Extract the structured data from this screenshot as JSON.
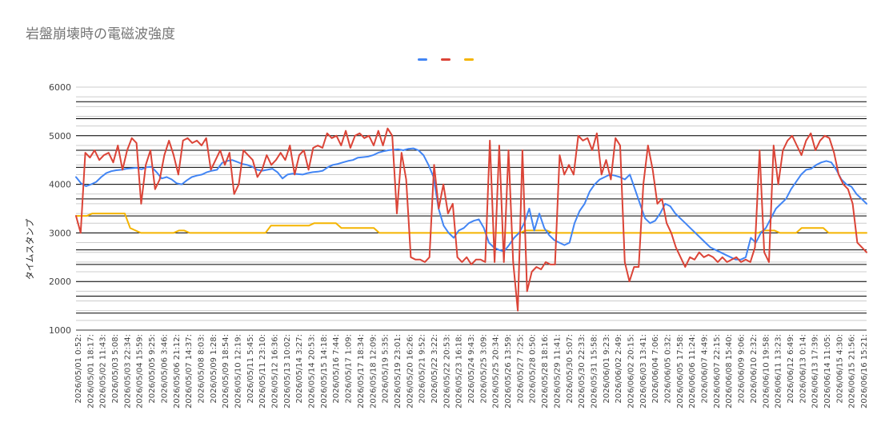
{
  "chart_data": {
    "type": "line",
    "title": "岩盤崩壊時の電磁波強度",
    "xlabel": "",
    "ylabel": "タイムスタンプ",
    "ylim": [
      1000,
      6000
    ],
    "y_ticks": [
      "6000",
      "5000",
      "4000",
      "3000",
      "2000",
      "1000"
    ],
    "grid": true,
    "legend_position": "top",
    "x_tick_labels": [
      "2026/05/01 0:52:",
      "2026/05/01 18:17:",
      "2026/05/02 11:43:",
      "2026/05/03 5:08:",
      "2026/05/03 22:34:",
      "2026/05/04 15:59:",
      "2026/05/05 9:25:",
      "2026/05/06 3:46:",
      "2026/05/06 21:12:",
      "2026/05/07 14:37:",
      "2026/05/08 8:03:",
      "2026/05/09 1:28:",
      "2026/05/09 18:54:",
      "2026/05/10 12:19:",
      "2026/05/11 5:45:",
      "2026/05/11 23:10:",
      "2026/05/12 16:36:",
      "2026/05/13 10:02:",
      "2026/05/14 3:27:",
      "2026/05/14 20:53:",
      "2026/05/15 14:18:",
      "2026/05/16 7:44:",
      "2026/05/17 1:09:",
      "2026/05/17 18:34:",
      "2026/05/18 12:09:",
      "2026/05/19 5:35:",
      "2026/05/19 23:01:",
      "2026/05/20 16:26:",
      "2026/05/21 9:52:",
      "2026/05/22 3:22:",
      "2026/05/22 20:53:",
      "2026/05/23 16:18:",
      "2026/05/24 9:43:",
      "2026/05/25 3:09:",
      "2026/05/25 20:34:",
      "2026/05/26 13:59:",
      "2026/05/27 7:25:",
      "2026/05/28 0:50:",
      "2026/05/28 18:16:",
      "2026/05/29 11:41:",
      "2026/05/30 5:07:",
      "2026/05/30 22:33:",
      "2026/05/31 15:58:",
      "2026/06/01 9:23:",
      "2026/06/02 2:49:",
      "2026/06/02 20:15:",
      "2026/06/03 13:41:",
      "2026/06/04 7:06:",
      "2026/06/05 0:32:",
      "2026/06/05 17:58:",
      "2026/06/06 11:24:",
      "2026/06/07 4:49:",
      "2026/06/07 22:15:",
      "2026/06/08 15:40:",
      "2026/06/09 9:06:",
      "2026/06/10 2:32:",
      "2026/06/10 19:58:",
      "2026/06/11 13:23:",
      "2026/06/12 6:49:",
      "2026/06/13 0:14:",
      "2026/06/13 17:39:",
      "2026/06/14 11:05:",
      "2026/06/15 4:30:",
      "2026/06/15 21:56:",
      "2026/06/16 15:21:"
    ],
    "series": [
      {
        "color": "#4285f4",
        "values": [
          4150,
          4020,
          3960,
          4000,
          4050,
          4150,
          4230,
          4270,
          4290,
          4300,
          4320,
          4330,
          4340,
          4310,
          4350,
          4360,
          4250,
          4120,
          4150,
          4100,
          4020,
          4000,
          4080,
          4150,
          4180,
          4200,
          4250,
          4280,
          4300,
          4440,
          4480,
          4500,
          4460,
          4420,
          4400,
          4360,
          4300,
          4280,
          4300,
          4320,
          4250,
          4120,
          4200,
          4220,
          4210,
          4200,
          4230,
          4250,
          4260,
          4280,
          4350,
          4400,
          4420,
          4450,
          4480,
          4500,
          4550,
          4560,
          4570,
          4600,
          4650,
          4680,
          4700,
          4710,
          4720,
          4700,
          4730,
          4740,
          4700,
          4600,
          4400,
          4150,
          3500,
          3150,
          3000,
          2900,
          3050,
          3100,
          3200,
          3250,
          3280,
          3100,
          2800,
          2700,
          2650,
          2620,
          2750,
          2900,
          3000,
          3200,
          3500,
          3050,
          3400,
          3100,
          2950,
          2850,
          2800,
          2750,
          2800,
          3200,
          3450,
          3600,
          3850,
          4000,
          4100,
          4150,
          4200,
          4180,
          4150,
          4100,
          4200,
          3900,
          3600,
          3300,
          3200,
          3250,
          3400,
          3600,
          3550,
          3400,
          3300,
          3200,
          3100,
          3000,
          2900,
          2800,
          2700,
          2650,
          2600,
          2550,
          2500,
          2450,
          2450,
          2500,
          2900,
          2800,
          3000,
          3100,
          3300,
          3500,
          3600,
          3700,
          3900,
          4050,
          4200,
          4300,
          4320,
          4400,
          4450,
          4480,
          4450,
          4300,
          4100,
          4000,
          3950,
          3800,
          3700,
          3600
        ]
      },
      {
        "color": "#db4437",
        "values": [
          3350,
          3000,
          4650,
          4550,
          4700,
          4500,
          4600,
          4650,
          4450,
          4800,
          4300,
          4700,
          4950,
          4850,
          3600,
          4400,
          4700,
          3900,
          4100,
          4600,
          4900,
          4600,
          4200,
          4900,
          4950,
          4850,
          4900,
          4800,
          4950,
          4300,
          4500,
          4700,
          4400,
          4650,
          3800,
          4000,
          4700,
          4600,
          4500,
          4150,
          4300,
          4600,
          4400,
          4500,
          4650,
          4500,
          4800,
          4200,
          4600,
          4700,
          4300,
          4750,
          4800,
          4750,
          5050,
          4950,
          5000,
          4800,
          5100,
          4750,
          5000,
          5050,
          4950,
          5000,
          4800,
          5100,
          4800,
          5150,
          5000,
          3400,
          4650,
          4100,
          2500,
          2450,
          2450,
          2400,
          2500,
          4400,
          3500,
          4000,
          3400,
          3600,
          2500,
          2400,
          2500,
          2350,
          2450,
          2450,
          2400,
          4900,
          2400,
          4800,
          2400,
          4700,
          2400,
          1400,
          4700,
          1800,
          2200,
          2300,
          2250,
          2400,
          2350,
          2350,
          4600,
          4200,
          4400,
          4200,
          5000,
          4900,
          4950,
          4700,
          5050,
          4200,
          4500,
          4100,
          4950,
          4800,
          2400,
          2000,
          2300,
          2300,
          4000,
          4800,
          4300,
          3600,
          3700,
          3200,
          3000,
          2700,
          2500,
          2300,
          2500,
          2450,
          2600,
          2500,
          2550,
          2500,
          2400,
          2500,
          2400,
          2450,
          2500,
          2400,
          2450,
          2400,
          2700,
          4700,
          2600,
          2400,
          4800,
          4000,
          4700,
          4900,
          5000,
          4800,
          4600,
          4900,
          5050,
          4700,
          4900,
          5000,
          4950,
          4650,
          4200,
          4000,
          3900,
          3600,
          2800,
          2700,
          2600
        ]
      },
      {
        "color": "#f4b400",
        "values": [
          3350,
          3350,
          3350,
          3400,
          3400,
          3400,
          3400,
          3400,
          3400,
          3400,
          3100,
          3050,
          3000,
          3000,
          3000,
          3000,
          3000,
          3000,
          3000,
          3050,
          3050,
          3000,
          3000,
          3000,
          3000,
          3000,
          3000,
          3000,
          3000,
          3000,
          3000,
          3000,
          3000,
          3000,
          3000,
          3000,
          3150,
          3150,
          3150,
          3150,
          3150,
          3150,
          3150,
          3150,
          3200,
          3200,
          3200,
          3200,
          3200,
          3100,
          3100,
          3100,
          3100,
          3100,
          3100,
          3100,
          3000,
          3000,
          3000,
          3000,
          3000,
          3000,
          3000,
          3000,
          3000,
          3000,
          3000,
          3000,
          3000,
          3000,
          3000,
          3000,
          3000,
          3000,
          3000,
          3000,
          3000,
          3000,
          3000,
          3000,
          3000,
          3000,
          3000,
          3050,
          3050,
          3050,
          3050,
          3050,
          3000,
          3000,
          3000,
          3000,
          3000,
          3000,
          3000,
          3000,
          3000,
          3000,
          3000,
          3000,
          3000,
          3000,
          3000,
          3000,
          3000,
          3000,
          3000,
          3000,
          3000,
          3000,
          3000,
          3000,
          3000,
          3000,
          3000,
          3000,
          3000,
          3000,
          3000,
          3000,
          3000,
          3000,
          3000,
          3000,
          3000,
          3000,
          3000,
          3050,
          3050,
          3050,
          3000,
          3000,
          3000,
          3000,
          3100,
          3100,
          3100,
          3100,
          3100,
          3000,
          3000,
          3000,
          3000,
          3000,
          3000,
          3000,
          3000
        ]
      }
    ]
  }
}
